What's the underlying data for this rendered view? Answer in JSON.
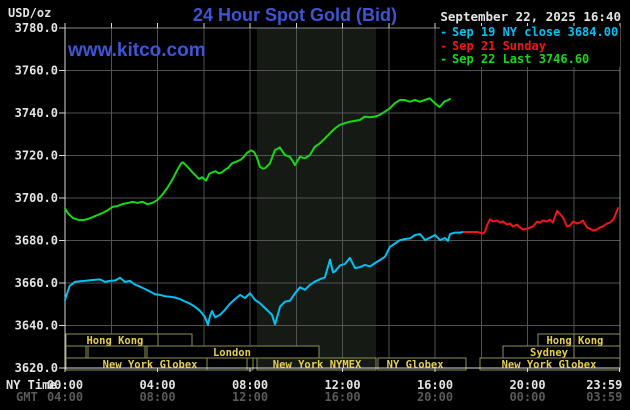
{
  "header": {
    "unit_label": "USD/oz",
    "title": "24 Hour Spot Gold (Bid)",
    "datetime": "September 22, 2025 16:40",
    "watermark": "www.kitco.com"
  },
  "legend": [
    {
      "marker": "-",
      "label": "Sep 19 NY close 3684.00",
      "color": "#00c2f2"
    },
    {
      "marker": "-",
      "label": "Sep 21 Sunday",
      "color": "#f01616"
    },
    {
      "marker": "-",
      "label": "Sep 22 Last 3746.60",
      "color": "#16d916"
    }
  ],
  "axis": {
    "ny_time_label": "NY Time",
    "gmt_label": "GMT"
  },
  "colors": {
    "bg": "#000000",
    "accent": "#3d55d6",
    "text_light": "#e4e4e4",
    "text_dim": "#5a5a5a",
    "grid": "#525252",
    "frame": "#8a8a8a",
    "frame_bright": "#d8d8d8",
    "shade": "#161a14",
    "band_border": "#8f8f55",
    "band_text": "#e6cf4e"
  },
  "chart_data": {
    "type": "line",
    "title": "24 Hour Spot Gold (Bid)",
    "ylabel": "USD/oz",
    "ylim": [
      3620,
      3780
    ],
    "xlim_hours": [
      0,
      24
    ],
    "grid": true,
    "x_grid_step_hours": 2,
    "shade_hours": [
      8.3,
      13.45
    ],
    "yticks": [
      {
        "value": 3780,
        "label": "3780.0"
      },
      {
        "value": 3760,
        "label": "3760.0"
      },
      {
        "value": 3740,
        "label": "3740.0"
      },
      {
        "value": 3720,
        "label": "3720.0"
      },
      {
        "value": 3700,
        "label": "3700.0"
      },
      {
        "value": 3680,
        "label": "3680.0"
      },
      {
        "value": 3660,
        "label": "3660.0"
      },
      {
        "value": 3640,
        "label": "3640.0"
      },
      {
        "value": 3620,
        "label": "3620.0"
      }
    ],
    "xticks": [
      {
        "h": 0,
        "ny": "00:00",
        "gmt": "04:00"
      },
      {
        "h": 4,
        "ny": "04:00",
        "gmt": "08:00"
      },
      {
        "h": 8,
        "ny": "08:00",
        "gmt": "12:00"
      },
      {
        "h": 12,
        "ny": "12:00",
        "gmt": "16:00"
      },
      {
        "h": 16,
        "ny": "16:00",
        "gmt": "20:00"
      },
      {
        "h": 20,
        "ny": "20:00",
        "gmt": "00:00"
      },
      {
        "h": 23.98,
        "label_h": 23.32,
        "ny": "23:59",
        "gmt": "03:59"
      }
    ],
    "series": [
      {
        "name": "Sep 19 NY close 3684.00",
        "color": "#00c2f2",
        "points": [
          [
            0,
            3652
          ],
          [
            0.2,
            3658.6
          ],
          [
            0.43,
            3660.5
          ],
          [
            0.65,
            3660.8
          ],
          [
            0.86,
            3661
          ],
          [
            1.08,
            3661.3
          ],
          [
            1.3,
            3661.5
          ],
          [
            1.51,
            3661.7
          ],
          [
            1.73,
            3660.5
          ],
          [
            1.94,
            3661
          ],
          [
            2.16,
            3661.2
          ],
          [
            2.38,
            3662.5
          ],
          [
            2.59,
            3660.5
          ],
          [
            2.81,
            3661
          ],
          [
            3.02,
            3659.3
          ],
          [
            3.24,
            3658.3
          ],
          [
            3.46,
            3657.2
          ],
          [
            3.67,
            3656
          ],
          [
            3.89,
            3654.7
          ],
          [
            4.1,
            3654.4
          ],
          [
            4.32,
            3653.8
          ],
          [
            4.54,
            3653.5
          ],
          [
            4.75,
            3653.2
          ],
          [
            4.97,
            3652.4
          ],
          [
            5.19,
            3651.3
          ],
          [
            5.4,
            3650.3
          ],
          [
            5.62,
            3648.8
          ],
          [
            5.84,
            3646.9
          ],
          [
            6.05,
            3644
          ],
          [
            6.18,
            3640.3
          ],
          [
            6.27,
            3644.5
          ],
          [
            6.36,
            3646.8
          ],
          [
            6.49,
            3643.8
          ],
          [
            6.7,
            3645
          ],
          [
            6.92,
            3647.4
          ],
          [
            7.13,
            3650.2
          ],
          [
            7.35,
            3652.4
          ],
          [
            7.57,
            3654.4
          ],
          [
            7.78,
            3652.9
          ],
          [
            8,
            3655.2
          ],
          [
            8.22,
            3652
          ],
          [
            8.43,
            3650.5
          ],
          [
            8.65,
            3648.2
          ],
          [
            8.95,
            3645
          ],
          [
            9.08,
            3640.5
          ],
          [
            9.3,
            3648.9
          ],
          [
            9.51,
            3651.2
          ],
          [
            9.73,
            3651.7
          ],
          [
            9.95,
            3655.2
          ],
          [
            10.16,
            3658
          ],
          [
            10.38,
            3656.8
          ],
          [
            10.59,
            3659.1
          ],
          [
            10.81,
            3660.7
          ],
          [
            11.03,
            3661.8
          ],
          [
            11.24,
            3662.7
          ],
          [
            11.46,
            3671
          ],
          [
            11.59,
            3665
          ],
          [
            11.68,
            3665.5
          ],
          [
            11.89,
            3668.3
          ],
          [
            12.11,
            3669
          ],
          [
            12.32,
            3671.8
          ],
          [
            12.54,
            3667
          ],
          [
            12.76,
            3667.5
          ],
          [
            12.97,
            3668.5
          ],
          [
            13.19,
            3667.8
          ],
          [
            13.41,
            3669.4
          ],
          [
            13.62,
            3670.8
          ],
          [
            13.84,
            3672.4
          ],
          [
            14.05,
            3677
          ],
          [
            14.27,
            3678.6
          ],
          [
            14.49,
            3680.2
          ],
          [
            14.7,
            3680.7
          ],
          [
            14.92,
            3681
          ],
          [
            15.14,
            3682.6
          ],
          [
            15.35,
            3683
          ],
          [
            15.57,
            3680.2
          ],
          [
            15.78,
            3681.3
          ],
          [
            16,
            3682.6
          ],
          [
            16.22,
            3680.2
          ],
          [
            16.43,
            3681.2
          ],
          [
            16.56,
            3679.8
          ],
          [
            16.65,
            3683
          ],
          [
            16.86,
            3683.7
          ],
          [
            17.08,
            3683.7
          ],
          [
            17.21,
            3684
          ]
        ]
      },
      {
        "name": "Sep 21 Sunday",
        "color": "#f01616",
        "points": [
          [
            17.25,
            3684
          ],
          [
            17.51,
            3684
          ],
          [
            17.82,
            3684
          ],
          [
            18.08,
            3683.3
          ],
          [
            18.16,
            3684.2
          ],
          [
            18.25,
            3687
          ],
          [
            18.38,
            3690
          ],
          [
            18.51,
            3689
          ],
          [
            18.68,
            3689.4
          ],
          [
            18.81,
            3688.4
          ],
          [
            18.94,
            3689
          ],
          [
            19.11,
            3687.5
          ],
          [
            19.24,
            3688
          ],
          [
            19.37,
            3686.6
          ],
          [
            19.55,
            3687.5
          ],
          [
            19.68,
            3686.1
          ],
          [
            19.81,
            3685.2
          ],
          [
            19.98,
            3685.6
          ],
          [
            20.11,
            3686.1
          ],
          [
            20.24,
            3686.6
          ],
          [
            20.41,
            3688.9
          ],
          [
            20.54,
            3688.4
          ],
          [
            20.67,
            3689.4
          ],
          [
            20.84,
            3688.9
          ],
          [
            20.97,
            3689.8
          ],
          [
            21.1,
            3688.4
          ],
          [
            21.28,
            3694
          ],
          [
            21.41,
            3692.4
          ],
          [
            21.54,
            3690.8
          ],
          [
            21.71,
            3686.6
          ],
          [
            21.84,
            3687
          ],
          [
            21.97,
            3688.9
          ],
          [
            22.14,
            3688
          ],
          [
            22.27,
            3688.4
          ],
          [
            22.4,
            3689.4
          ],
          [
            22.57,
            3686.1
          ],
          [
            22.7,
            3685.6
          ],
          [
            22.83,
            3684.7
          ],
          [
            23,
            3685.2
          ],
          [
            23.13,
            3686.1
          ],
          [
            23.26,
            3686.6
          ],
          [
            23.44,
            3688
          ],
          [
            23.57,
            3688.4
          ],
          [
            23.7,
            3689.9
          ],
          [
            23.78,
            3691.5
          ],
          [
            23.85,
            3693.4
          ],
          [
            23.91,
            3695.2
          ]
        ]
      },
      {
        "name": "Sep 22 Last 3746.60",
        "color": "#16d916",
        "points": [
          [
            0,
            3695
          ],
          [
            0.15,
            3692.5
          ],
          [
            0.35,
            3690.5
          ],
          [
            0.56,
            3689.8
          ],
          [
            0.77,
            3689.6
          ],
          [
            0.99,
            3690.1
          ],
          [
            1.2,
            3691
          ],
          [
            1.41,
            3692
          ],
          [
            1.63,
            3693
          ],
          [
            1.84,
            3694.2
          ],
          [
            2.06,
            3695.8
          ],
          [
            2.27,
            3696.2
          ],
          [
            2.49,
            3697.2
          ],
          [
            2.7,
            3697.6
          ],
          [
            2.92,
            3698.2
          ],
          [
            3.13,
            3697.7
          ],
          [
            3.35,
            3698.2
          ],
          [
            3.56,
            3697.1
          ],
          [
            3.78,
            3697.7
          ],
          [
            3.99,
            3699
          ],
          [
            4.2,
            3701.4
          ],
          [
            4.42,
            3704.7
          ],
          [
            4.63,
            3708.4
          ],
          [
            4.85,
            3713.1
          ],
          [
            5.03,
            3716.4
          ],
          [
            5.1,
            3716.8
          ],
          [
            5.24,
            3715.3
          ],
          [
            5.38,
            3713.7
          ],
          [
            5.51,
            3712.1
          ],
          [
            5.65,
            3710.6
          ],
          [
            5.79,
            3709
          ],
          [
            5.93,
            3709.8
          ],
          [
            6.1,
            3708.2
          ],
          [
            6.24,
            3711.4
          ],
          [
            6.38,
            3712.1
          ],
          [
            6.51,
            3712.6
          ],
          [
            6.65,
            3711.6
          ],
          [
            6.79,
            3712.1
          ],
          [
            6.92,
            3713.3
          ],
          [
            7.06,
            3714.2
          ],
          [
            7.2,
            3716.1
          ],
          [
            7.33,
            3716.8
          ],
          [
            7.46,
            3717.3
          ],
          [
            7.6,
            3718
          ],
          [
            7.74,
            3719.5
          ],
          [
            7.87,
            3721.3
          ],
          [
            8.05,
            3722.4
          ],
          [
            8.18,
            3721.6
          ],
          [
            8.3,
            3719
          ],
          [
            8.43,
            3714.7
          ],
          [
            8.56,
            3713.8
          ],
          [
            8.65,
            3714
          ],
          [
            8.86,
            3716.3
          ],
          [
            9.08,
            3722.6
          ],
          [
            9.2,
            3723.2
          ],
          [
            9.29,
            3723.8
          ],
          [
            9.51,
            3720.2
          ],
          [
            9.72,
            3719.4
          ],
          [
            9.85,
            3717.3
          ],
          [
            9.94,
            3715.5
          ],
          [
            10.16,
            3719.4
          ],
          [
            10.37,
            3718.7
          ],
          [
            10.59,
            3720.2
          ],
          [
            10.8,
            3724.1
          ],
          [
            11.02,
            3725.7
          ],
          [
            11.24,
            3728
          ],
          [
            11.45,
            3730.4
          ],
          [
            11.67,
            3732.7
          ],
          [
            11.88,
            3734.4
          ],
          [
            12.1,
            3735.2
          ],
          [
            12.32,
            3735.9
          ],
          [
            12.53,
            3736.3
          ],
          [
            12.75,
            3736.7
          ],
          [
            12.97,
            3738.3
          ],
          [
            13.18,
            3738
          ],
          [
            13.4,
            3738.3
          ],
          [
            13.61,
            3739.1
          ],
          [
            13.83,
            3740.6
          ],
          [
            14.05,
            3742.2
          ],
          [
            14.26,
            3744.6
          ],
          [
            14.48,
            3746.1
          ],
          [
            14.69,
            3746.1
          ],
          [
            14.91,
            3745.3
          ],
          [
            15.13,
            3746.1
          ],
          [
            15.34,
            3745.3
          ],
          [
            15.56,
            3746.1
          ],
          [
            15.77,
            3746.9
          ],
          [
            15.99,
            3744.6
          ],
          [
            16.2,
            3742.8
          ],
          [
            16.42,
            3745.5
          ],
          [
            16.55,
            3746
          ],
          [
            16.65,
            3746.6
          ]
        ]
      }
    ],
    "sessions": {
      "rows": [
        {
          "boxes": [
            {
              "h1": 0.05,
              "h2": 4.02
            },
            {
              "h1": 4.02,
              "h2": 5.49
            },
            {
              "h1": 20.45,
              "h2": 22
            },
            {
              "h1": 22,
              "h2": 24
            }
          ],
          "labels": [
            {
              "text": "Hong Kong",
              "ch": 2.16
            },
            {
              "text": "Hong Kong",
              "ch": 22.05
            }
          ]
        },
        {
          "boxes": [
            {
              "h1": 0.05,
              "h2": 0.91
            },
            {
              "h1": 0.99,
              "h2": 3.46
            },
            {
              "h1": 3.55,
              "h2": 10.98
            },
            {
              "h1": 18.94,
              "h2": 22
            },
            {
              "h1": 22,
              "h2": 24
            }
          ],
          "labels": [
            {
              "text": "London",
              "ch": 7.22
            },
            {
              "text": "Sydney",
              "ch": 20.93
            }
          ]
        },
        {
          "boxes": [
            {
              "h1": 0.05,
              "h2": 6.14
            },
            {
              "h1": 6.14,
              "h2": 7.87
            },
            {
              "h1": 7.87,
              "h2": 8.13
            },
            {
              "h1": 8.3,
              "h2": 13.45,
              "shaded": true
            },
            {
              "h1": 13.54,
              "h2": 17.34
            },
            {
              "h1": 17.95,
              "h2": 24
            }
          ],
          "labels": [
            {
              "text": "New York Globex",
              "ch": 3.68
            },
            {
              "text": "New York NYMEX",
              "ch": 10.9
            },
            {
              "text": "NY Globex",
              "ch": 15.14
            },
            {
              "text": "New York Globex",
              "ch": 20.93
            }
          ]
        }
      ]
    }
  }
}
